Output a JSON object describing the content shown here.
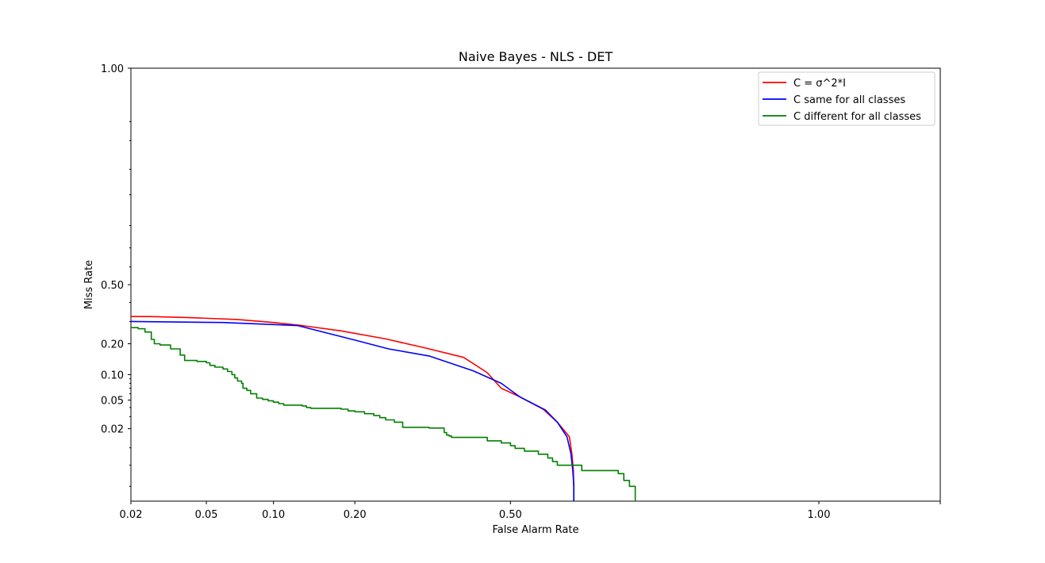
{
  "chart_data": {
    "type": "line",
    "title": "Naive Bayes - NLS - DET",
    "xlabel": "False Alarm Rate",
    "ylabel": "Miss Rate",
    "x_scale": "probit",
    "y_scale": "probit",
    "xlim": [
      0.02,
      0.99
    ],
    "ylim": [
      0.001,
      0.999
    ],
    "x_ticks": [
      0.02,
      0.05,
      0.1,
      0.2,
      0.5,
      1.0
    ],
    "x_tick_labels": [
      "0.02",
      "0.05",
      "0.10",
      "0.20",
      "0.50",
      "1.00"
    ],
    "y_ticks": [
      0.02,
      0.05,
      0.1,
      0.2,
      0.5,
      0.999
    ],
    "y_tick_labels": [
      "0.02",
      "0.05",
      "0.10",
      "0.20",
      "0.50",
      "1.00"
    ],
    "grid": false,
    "legend_position": "top-right",
    "series": [
      {
        "name": "C = σ^2*I",
        "color": "#ff0000",
        "step": false,
        "points": [
          [
            0.02,
            0.325
          ],
          [
            0.025,
            0.325
          ],
          [
            0.04,
            0.32
          ],
          [
            0.07,
            0.31
          ],
          [
            0.1,
            0.295
          ],
          [
            0.13,
            0.28
          ],
          [
            0.18,
            0.255
          ],
          [
            0.25,
            0.22
          ],
          [
            0.32,
            0.185
          ],
          [
            0.4,
            0.15
          ],
          [
            0.45,
            0.105
          ],
          [
            0.48,
            0.07
          ],
          [
            0.52,
            0.055
          ],
          [
            0.57,
            0.038
          ],
          [
            0.6,
            0.025
          ],
          [
            0.625,
            0.015
          ],
          [
            0.63,
            0.008
          ],
          [
            0.633,
            0.004
          ],
          [
            0.634,
            0.002
          ],
          [
            0.634,
            0.001
          ]
        ]
      },
      {
        "name": "C same for all classes",
        "color": "#0000ff",
        "step": false,
        "points": [
          [
            0.02,
            0.3
          ],
          [
            0.06,
            0.295
          ],
          [
            0.125,
            0.28
          ],
          [
            0.2,
            0.215
          ],
          [
            0.255,
            0.18
          ],
          [
            0.33,
            0.155
          ],
          [
            0.42,
            0.11
          ],
          [
            0.48,
            0.08
          ],
          [
            0.52,
            0.055
          ],
          [
            0.575,
            0.037
          ],
          [
            0.6,
            0.025
          ],
          [
            0.62,
            0.015
          ],
          [
            0.628,
            0.008
          ],
          [
            0.632,
            0.004
          ],
          [
            0.634,
            0.002
          ],
          [
            0.634,
            0.001
          ]
        ]
      },
      {
        "name": "C different for all classes",
        "color": "#008000",
        "step": true,
        "points": [
          [
            0.02,
            0.27
          ],
          [
            0.022,
            0.265
          ],
          [
            0.024,
            0.25
          ],
          [
            0.026,
            0.218
          ],
          [
            0.027,
            0.2
          ],
          [
            0.029,
            0.195
          ],
          [
            0.033,
            0.18
          ],
          [
            0.037,
            0.158
          ],
          [
            0.039,
            0.14
          ],
          [
            0.045,
            0.137
          ],
          [
            0.05,
            0.133
          ],
          [
            0.052,
            0.125
          ],
          [
            0.055,
            0.12
          ],
          [
            0.06,
            0.115
          ],
          [
            0.063,
            0.108
          ],
          [
            0.066,
            0.1
          ],
          [
            0.068,
            0.092
          ],
          [
            0.07,
            0.085
          ],
          [
            0.073,
            0.08
          ],
          [
            0.074,
            0.07
          ],
          [
            0.077,
            0.066
          ],
          [
            0.08,
            0.06
          ],
          [
            0.085,
            0.053
          ],
          [
            0.09,
            0.051
          ],
          [
            0.095,
            0.049
          ],
          [
            0.1,
            0.047
          ],
          [
            0.105,
            0.045
          ],
          [
            0.11,
            0.043
          ],
          [
            0.13,
            0.042
          ],
          [
            0.135,
            0.04
          ],
          [
            0.14,
            0.039
          ],
          [
            0.18,
            0.038
          ],
          [
            0.19,
            0.036
          ],
          [
            0.2,
            0.035
          ],
          [
            0.215,
            0.033
          ],
          [
            0.23,
            0.031
          ],
          [
            0.24,
            0.029
          ],
          [
            0.25,
            0.027
          ],
          [
            0.265,
            0.025
          ],
          [
            0.28,
            0.021
          ],
          [
            0.33,
            0.0205
          ],
          [
            0.36,
            0.0175
          ],
          [
            0.365,
            0.016
          ],
          [
            0.37,
            0.0155
          ],
          [
            0.375,
            0.0147
          ],
          [
            0.45,
            0.013
          ],
          [
            0.48,
            0.012
          ],
          [
            0.5,
            0.0108
          ],
          [
            0.51,
            0.0098
          ],
          [
            0.53,
            0.0088
          ],
          [
            0.56,
            0.0078
          ],
          [
            0.58,
            0.0067
          ],
          [
            0.59,
            0.0058
          ],
          [
            0.6,
            0.005
          ],
          [
            0.65,
            0.004
          ],
          [
            0.72,
            0.0035
          ],
          [
            0.73,
            0.0026
          ],
          [
            0.74,
            0.002
          ],
          [
            0.75,
            0.001
          ]
        ]
      }
    ]
  }
}
